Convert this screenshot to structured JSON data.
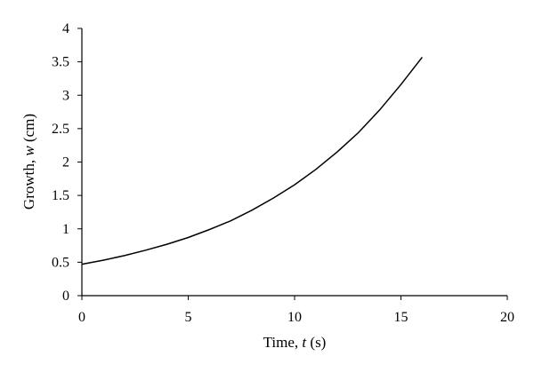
{
  "chart_data": {
    "type": "line",
    "title": "",
    "xlabel_prefix": "Time, ",
    "xlabel_var": "t",
    "xlabel_suffix": " (s)",
    "ylabel_prefix": "Growth, ",
    "ylabel_var": "w",
    "ylabel_suffix": " (cm)",
    "xlim": [
      0,
      20
    ],
    "ylim": [
      0,
      4
    ],
    "x_ticks": [
      0,
      5,
      10,
      15,
      20
    ],
    "x_tick_labels": [
      "0",
      "5",
      "10",
      "15",
      "20"
    ],
    "y_ticks": [
      0,
      0.5,
      1,
      1.5,
      2,
      2.5,
      3,
      3.5,
      4
    ],
    "y_tick_labels": [
      "0",
      "0.5",
      "1",
      "1.5",
      "2",
      "2.5",
      "3",
      "3.5",
      "4"
    ],
    "grid": false,
    "series": [
      {
        "x": [
          0,
          1,
          2,
          3,
          4,
          5,
          6,
          7,
          8,
          9,
          10,
          11,
          12,
          13,
          14,
          15,
          16
        ],
        "y": [
          0.47,
          0.53,
          0.6,
          0.68,
          0.77,
          0.87,
          0.99,
          1.12,
          1.28,
          1.46,
          1.66,
          1.89,
          2.15,
          2.44,
          2.78,
          3.16,
          3.57
        ],
        "color": "#000000"
      }
    ]
  }
}
